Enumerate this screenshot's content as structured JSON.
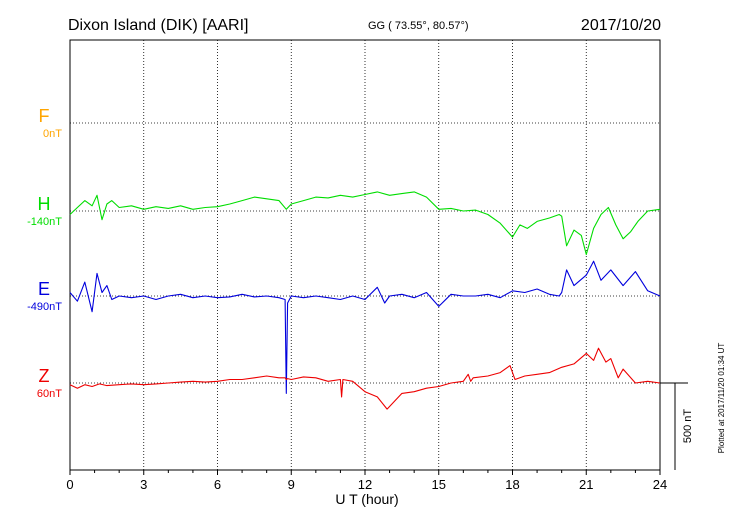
{
  "header": {
    "station": "Dixon Island (DIK)  [AARI]",
    "coords": "GG ( 73.55°,  80.57°)",
    "date": "2017/10/20"
  },
  "plotted_note": "Plotted at 2017/11/20 01:34 UT",
  "chart_data": {
    "type": "line",
    "xlabel": "U T (hour)",
    "xlim": [
      0,
      24
    ],
    "xticks": [
      "0",
      "3",
      "6",
      "9",
      "12",
      "15",
      "18",
      "21",
      "24"
    ],
    "scale_bar_label": "500 nT",
    "series": [
      {
        "name": "F",
        "baseline": "0nT",
        "color": "#ffa500",
        "x": [],
        "y": []
      },
      {
        "name": "H",
        "baseline": "-140nT",
        "color": "#00dd00",
        "x": [
          0,
          0.3,
          0.6,
          0.9,
          1.1,
          1.3,
          1.5,
          1.7,
          2,
          2.5,
          3,
          3.5,
          4,
          4.5,
          5,
          5.5,
          6,
          6.5,
          7,
          7.5,
          8,
          8.5,
          8.8,
          9,
          9.5,
          10,
          10.5,
          11,
          11.5,
          12,
          12.5,
          13,
          13.5,
          14,
          14.5,
          15,
          15.5,
          16,
          16.5,
          17,
          17.5,
          18,
          18.3,
          18.6,
          19,
          19.5,
          19.9,
          20,
          20.2,
          20.5,
          20.8,
          21,
          21.3,
          21.6,
          21.9,
          22.2,
          22.5,
          22.8,
          23.1,
          23.5,
          24
        ],
        "y": [
          -20,
          20,
          60,
          30,
          90,
          -50,
          40,
          60,
          20,
          30,
          10,
          25,
          15,
          30,
          10,
          20,
          25,
          40,
          60,
          80,
          70,
          60,
          10,
          40,
          60,
          80,
          75,
          90,
          80,
          95,
          110,
          90,
          100,
          110,
          80,
          10,
          15,
          0,
          5,
          -20,
          -70,
          -150,
          -80,
          -100,
          -60,
          -40,
          -20,
          -30,
          -200,
          -110,
          -140,
          -250,
          -100,
          -20,
          20,
          -80,
          -160,
          -120,
          -60,
          0,
          10
        ]
      },
      {
        "name": "E",
        "baseline": "-490nT",
        "color": "#0000dd",
        "x": [
          0,
          0.3,
          0.6,
          0.9,
          1.1,
          1.3,
          1.5,
          1.7,
          2,
          2.5,
          3,
          3.5,
          4,
          4.5,
          5,
          5.5,
          6,
          6.5,
          7,
          7.5,
          8,
          8.5,
          8.75,
          8.8,
          8.85,
          9,
          9.5,
          10,
          10.5,
          11,
          11.5,
          12,
          12.5,
          12.8,
          13,
          13.5,
          14,
          14.5,
          15,
          15.5,
          16,
          16.5,
          17,
          17.5,
          18,
          18.5,
          19,
          19.5,
          19.9,
          20,
          20.2,
          20.5,
          21,
          21.3,
          21.6,
          22,
          22.5,
          23,
          23.5,
          24
        ],
        "y": [
          20,
          -30,
          80,
          -90,
          130,
          20,
          60,
          -20,
          0,
          -10,
          0,
          -20,
          0,
          10,
          -10,
          0,
          -10,
          -5,
          10,
          -5,
          0,
          -10,
          -20,
          -560,
          -40,
          0,
          -10,
          0,
          -10,
          -20,
          0,
          -20,
          50,
          -40,
          0,
          10,
          -10,
          20,
          -60,
          10,
          0,
          0,
          10,
          -10,
          30,
          20,
          40,
          10,
          0,
          20,
          150,
          60,
          120,
          200,
          90,
          150,
          60,
          140,
          30,
          0
        ]
      },
      {
        "name": "Z",
        "baseline": "60nT",
        "color": "#ee0000",
        "x": [
          0,
          0.3,
          0.6,
          0.9,
          1.2,
          1.5,
          2,
          2.5,
          3,
          3.5,
          4,
          4.5,
          5,
          5.5,
          6,
          6.5,
          7,
          7.5,
          8,
          8.5,
          8.75,
          8.8,
          8.85,
          9,
          9.5,
          10,
          10.5,
          11,
          11.05,
          11.1,
          11.5,
          12,
          12.5,
          12.9,
          13.5,
          14,
          14.5,
          15,
          15.5,
          16,
          16.2,
          16.3,
          16.4,
          17,
          17.5,
          17.9,
          18.1,
          18.5,
          19,
          19.5,
          20,
          20.5,
          21,
          21.3,
          21.5,
          21.8,
          22,
          22.3,
          22.5,
          23,
          23.5,
          24
        ],
        "y": [
          -10,
          -30,
          -10,
          -20,
          -5,
          -15,
          -10,
          -5,
          -10,
          -5,
          0,
          5,
          10,
          5,
          10,
          20,
          20,
          30,
          40,
          30,
          30,
          20,
          25,
          20,
          35,
          30,
          10,
          20,
          -80,
          20,
          10,
          -50,
          -80,
          -150,
          -60,
          -50,
          -30,
          -20,
          0,
          10,
          50,
          10,
          30,
          40,
          60,
          100,
          20,
          40,
          50,
          60,
          90,
          110,
          170,
          130,
          200,
          120,
          140,
          30,
          80,
          0,
          10,
          0
        ]
      }
    ]
  }
}
